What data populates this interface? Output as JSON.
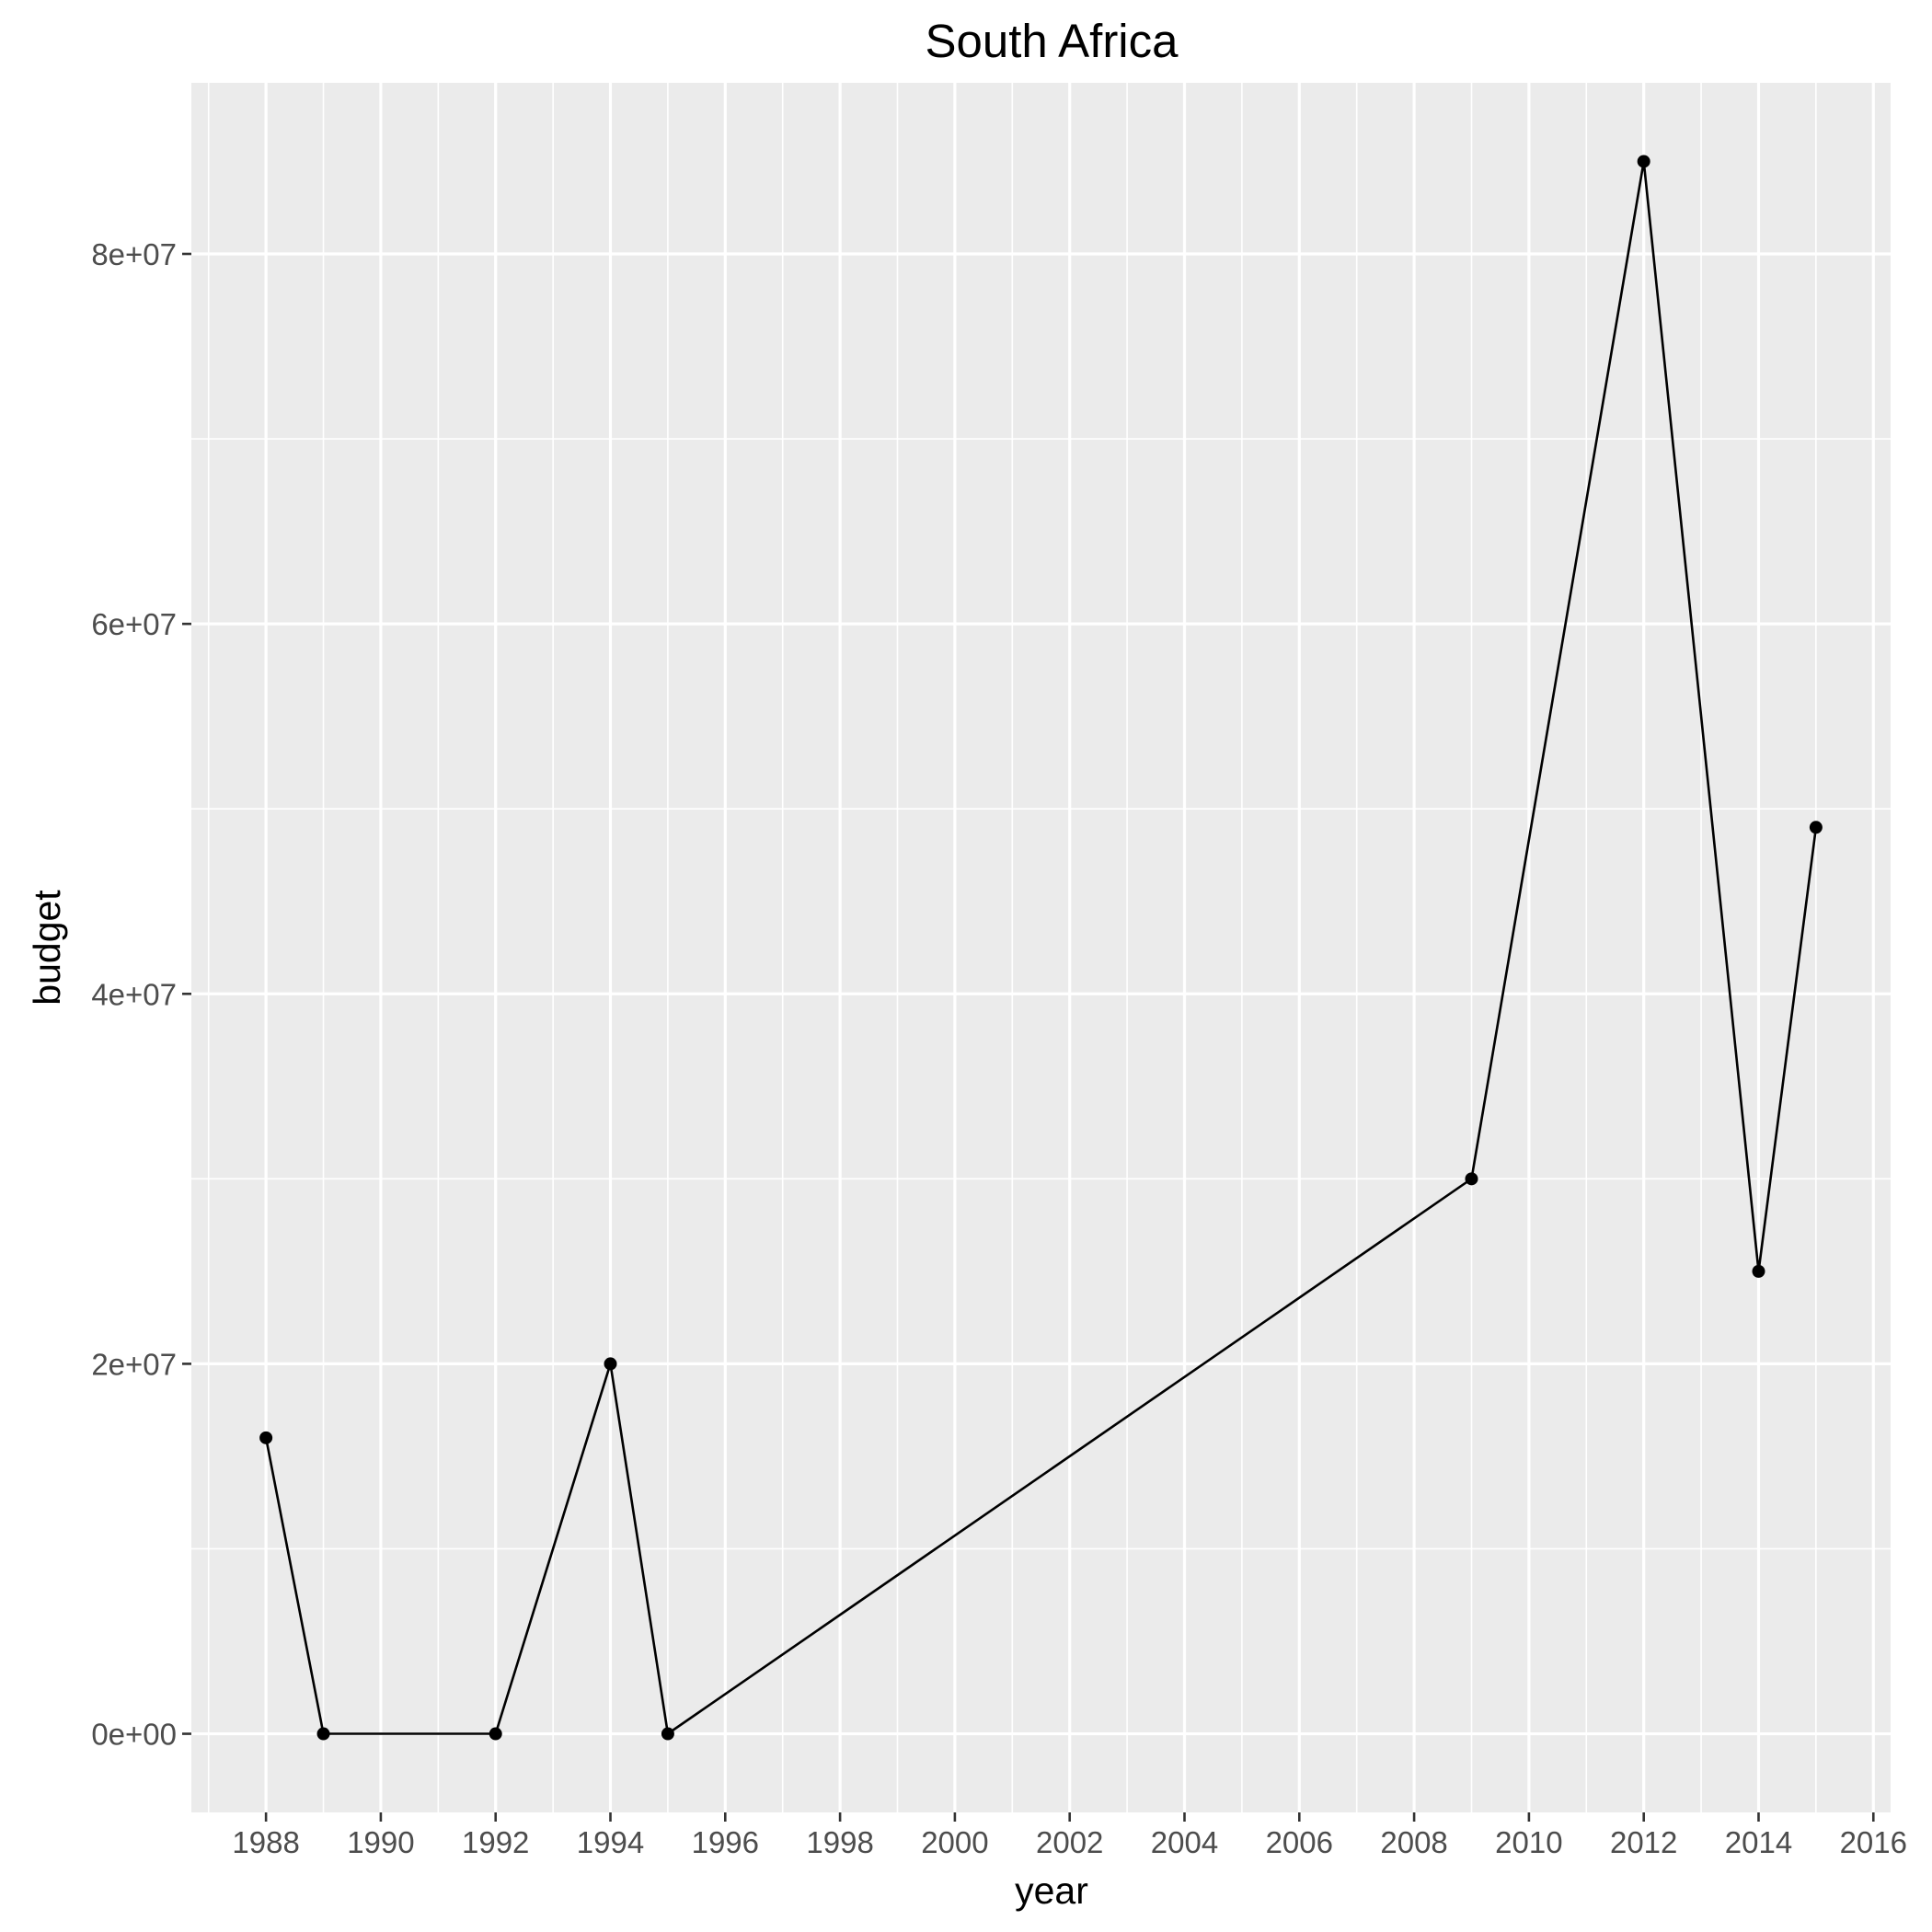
{
  "chart_data": {
    "type": "line",
    "title": "South Africa",
    "xlabel": "year",
    "ylabel": "budget",
    "x": [
      1988,
      1989,
      1992,
      1994,
      1995,
      2009,
      2012,
      2014,
      2015
    ],
    "y": [
      16000000,
      0,
      0,
      20000000,
      0,
      30000000,
      85000000,
      25000000,
      49000000
    ],
    "xlim": [
      1986.7,
      2016.3
    ],
    "ylim": [
      -4250000,
      89250000
    ],
    "x_ticks": [
      "1988",
      "1990",
      "1992",
      "1994",
      "1996",
      "1998",
      "2000",
      "2002",
      "2004",
      "2006",
      "2008",
      "2010",
      "2012",
      "2014",
      "2016"
    ],
    "y_ticks": [
      "0e+00",
      "2e+07",
      "4e+07",
      "6e+07",
      "8e+07"
    ],
    "grid": true,
    "legend": "none",
    "colors": {
      "panel": "#ebebeb",
      "grid": "#ffffff",
      "line": "#000000",
      "tick_text": "#4d4d4d"
    }
  }
}
